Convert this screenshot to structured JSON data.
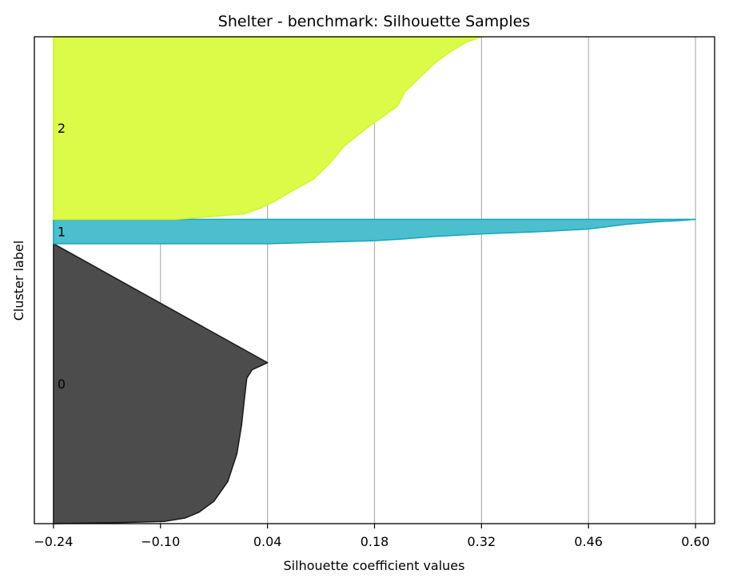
{
  "chart_data": {
    "type": "silhouette",
    "title": "Shelter - benchmark: Silhouette Samples",
    "xlabel": "Silhouette coefficient values",
    "ylabel": "Cluster label",
    "xlim": [
      -0.265,
      0.625
    ],
    "x_ticks": [
      -0.24,
      -0.1,
      0.04,
      0.18,
      0.32,
      0.46,
      0.6
    ],
    "x_tick_labels": [
      "−0.24",
      "−0.10",
      "0.04",
      "0.18",
      "0.32",
      "0.46",
      "0.60"
    ],
    "grid": "x-only",
    "ylim": [
      0,
      1
    ],
    "clusters": [
      {
        "label": "0",
        "color": "#4c4c4c",
        "edge_color": "#1a1a1a",
        "y_range": [
          0.0,
          0.575
        ],
        "profile": [
          [
            0.0,
            -0.24
          ],
          [
            0.004,
            -0.15
          ],
          [
            0.008,
            -0.095
          ],
          [
            0.02,
            -0.068
          ],
          [
            0.04,
            -0.05
          ],
          [
            0.08,
            -0.03
          ],
          [
            0.15,
            -0.012
          ],
          [
            0.25,
            0.0
          ],
          [
            0.35,
            0.006
          ],
          [
            0.45,
            0.01
          ],
          [
            0.52,
            0.013
          ],
          [
            0.55,
            0.02
          ],
          [
            0.565,
            0.032
          ],
          [
            0.575,
            0.04
          ]
        ]
      },
      {
        "label": "1",
        "color": "#4bbfce",
        "edge_color": "#17a6b8",
        "y_range": [
          0.575,
          0.625
        ],
        "profile": [
          [
            0.0,
            0.04
          ],
          [
            0.05,
            0.1
          ],
          [
            0.12,
            0.18
          ],
          [
            0.2,
            0.22
          ],
          [
            0.3,
            0.26
          ],
          [
            0.4,
            0.32
          ],
          [
            0.5,
            0.4
          ],
          [
            0.6,
            0.46
          ],
          [
            0.7,
            0.485
          ],
          [
            0.8,
            0.51
          ],
          [
            0.9,
            0.55
          ],
          [
            0.95,
            0.58
          ],
          [
            1.0,
            0.6
          ]
        ]
      },
      {
        "label": "2",
        "color": "#dcfa48",
        "edge_color": "#d4f230",
        "y_range": [
          0.625,
          1.0
        ],
        "profile": [
          [
            0.0,
            -0.08
          ],
          [
            0.03,
            0.01
          ],
          [
            0.06,
            0.03
          ],
          [
            0.1,
            0.05
          ],
          [
            0.15,
            0.07
          ],
          [
            0.22,
            0.1
          ],
          [
            0.3,
            0.12
          ],
          [
            0.4,
            0.14
          ],
          [
            0.5,
            0.17
          ],
          [
            0.56,
            0.19
          ],
          [
            0.62,
            0.21
          ],
          [
            0.7,
            0.22
          ],
          [
            0.78,
            0.24
          ],
          [
            0.86,
            0.26
          ],
          [
            0.92,
            0.28
          ],
          [
            0.97,
            0.3
          ],
          [
            1.0,
            0.32
          ]
        ]
      }
    ]
  }
}
